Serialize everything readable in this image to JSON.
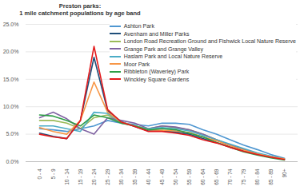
{
  "chart_data": {
    "type": "line",
    "title": "Preston parks:\n1 mile catchment populations by age band",
    "categories": [
      "0 - 4",
      "5 - 9",
      "10 - 14",
      "15 - 19",
      "20 - 24",
      "25 - 29",
      "30 - 34",
      "35 - 39",
      "40 - 44",
      "45 - 49",
      "50 - 54",
      "55 - 59",
      "60 - 64",
      "65 - 69",
      "70 - 74",
      "75 - 79",
      "80 - 84",
      "85 - 89",
      "90+"
    ],
    "series": [
      {
        "name": "Ashton Park",
        "color": "#4f97d1",
        "values": [
          6.0,
          5.8,
          5.5,
          6.0,
          6.5,
          7.5,
          7.0,
          6.8,
          6.5,
          7.0,
          7.0,
          6.8,
          5.8,
          5.0,
          4.0,
          3.0,
          2.2,
          1.3,
          0.6
        ]
      },
      {
        "name": "Avenham and Miller Parks",
        "color": "#1f4e79",
        "values": [
          5.2,
          4.6,
          4.2,
          7.5,
          19.0,
          9.3,
          7.3,
          6.4,
          5.6,
          5.6,
          5.4,
          5.0,
          4.2,
          3.5,
          2.7,
          2.0,
          1.4,
          0.9,
          0.5
        ]
      },
      {
        "name": "London Road Recreation Ground and Fishwick Local Nature Reserve",
        "color": "#9bbb59",
        "values": [
          7.5,
          7.5,
          7.0,
          6.0,
          8.0,
          8.5,
          7.0,
          6.5,
          6.0,
          6.5,
          6.2,
          5.8,
          5.0,
          4.0,
          3.0,
          2.2,
          1.5,
          0.9,
          0.4
        ]
      },
      {
        "name": "Grange Park and Grange Valley",
        "color": "#8064a2",
        "values": [
          8.0,
          9.0,
          7.8,
          6.0,
          5.0,
          8.0,
          7.5,
          7.0,
          6.0,
          6.5,
          6.3,
          5.8,
          5.0,
          4.0,
          3.0,
          2.2,
          1.5,
          0.9,
          0.4
        ]
      },
      {
        "name": "Haslam Park and Local Nature Reserve",
        "color": "#4bacc6",
        "values": [
          6.5,
          6.5,
          6.0,
          5.5,
          9.0,
          8.8,
          7.2,
          6.5,
          6.0,
          6.2,
          6.0,
          5.6,
          4.8,
          4.0,
          3.2,
          2.4,
          1.6,
          1.0,
          0.5
        ]
      },
      {
        "name": "Moor Park",
        "color": "#f79646",
        "values": [
          6.2,
          5.5,
          5.0,
          7.5,
          14.5,
          9.0,
          7.2,
          6.5,
          5.8,
          5.7,
          5.6,
          5.3,
          4.5,
          3.8,
          2.9,
          2.1,
          1.4,
          0.9,
          0.5
        ]
      },
      {
        "name": "Ribbleton (Waverley) Park",
        "color": "#2e9e47",
        "values": [
          8.5,
          8.3,
          7.5,
          6.5,
          8.5,
          8.0,
          7.0,
          6.5,
          5.8,
          6.0,
          5.8,
          5.2,
          4.5,
          3.5,
          2.6,
          1.8,
          1.2,
          0.7,
          0.3
        ]
      },
      {
        "name": "Winckley Square Gardens",
        "color": "#e31a1c",
        "values": [
          5.0,
          4.5,
          4.2,
          7.5,
          21.0,
          9.5,
          7.2,
          6.4,
          5.5,
          5.5,
          5.2,
          4.8,
          4.0,
          3.4,
          2.6,
          1.9,
          1.3,
          0.8,
          0.4
        ]
      }
    ],
    "ylim": [
      0,
      25
    ],
    "yticks": [
      {
        "value": 0,
        "label": "0.0%"
      },
      {
        "value": 5,
        "label": "5.0%"
      },
      {
        "value": 10,
        "label": "10.0%"
      },
      {
        "value": 15,
        "label": "15.0%"
      },
      {
        "value": 20,
        "label": "20.0%"
      },
      {
        "value": 25,
        "label": "25.0%"
      }
    ],
    "grid": true,
    "legend": "top-right"
  }
}
